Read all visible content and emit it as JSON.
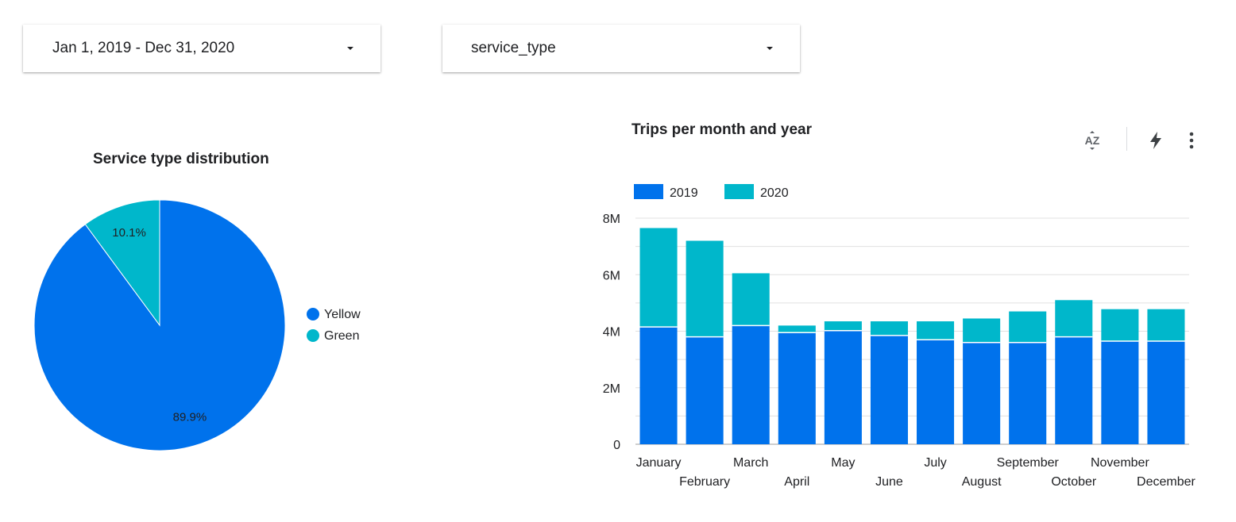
{
  "filters": {
    "date_range": {
      "label": "Jan 1, 2019 - Dec 31, 2020",
      "icon": "caret-down-icon"
    },
    "service_type": {
      "label": "service_type",
      "icon": "caret-down-icon"
    }
  },
  "toolbar": {
    "sort_icon": "sort-az-icon",
    "optimize_icon": "lightning-icon",
    "menu_icon": "more-vert-icon"
  },
  "colors": {
    "yellow_2019": "#0072ec",
    "green_2020": "#00b7cb",
    "grid": "#e0e0e0"
  },
  "chart_data": [
    {
      "type": "pie",
      "title": "Service type distribution",
      "labels": [
        "Yellow",
        "Green"
      ],
      "values": [
        89.9,
        10.1
      ],
      "value_labels": [
        "89.9%",
        "10.1%"
      ],
      "colors": [
        "#0072ec",
        "#00b7cb"
      ],
      "legend_position": "right"
    },
    {
      "type": "bar",
      "stacked": true,
      "title": "Trips per month and year",
      "categories": [
        "January",
        "February",
        "March",
        "April",
        "May",
        "June",
        "July",
        "August",
        "September",
        "October",
        "November",
        "December"
      ],
      "series": [
        {
          "name": "2019",
          "color": "#0072ec",
          "values": [
            4.15,
            3.8,
            4.2,
            3.95,
            4.02,
            3.85,
            3.7,
            3.6,
            3.6,
            3.8,
            3.65,
            3.65
          ]
        },
        {
          "name": "2020",
          "color": "#00b7cb",
          "values": [
            3.5,
            3.4,
            1.85,
            0.25,
            0.33,
            0.5,
            0.65,
            0.85,
            1.1,
            1.3,
            1.13,
            1.13
          ]
        }
      ],
      "y_ticks": [
        "0",
        "2M",
        "4M",
        "6M",
        "8M"
      ],
      "ylim": [
        0,
        8
      ],
      "y_unit": "millions",
      "grid": true,
      "legend_position": "top-left"
    }
  ]
}
